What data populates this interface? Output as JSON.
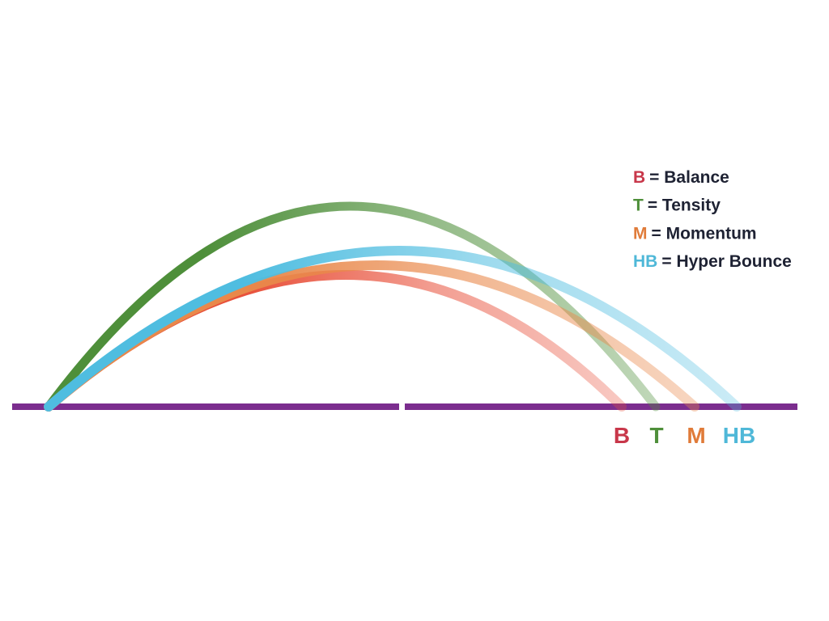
{
  "legend": [
    {
      "abbr": "B",
      "text": "= Balance",
      "color": "#c8374a"
    },
    {
      "abbr": "T",
      "text": "= Tensity",
      "color": "#4e8f3a"
    },
    {
      "abbr": "M",
      "text": "= Momentum",
      "color": "#e07b39"
    },
    {
      "abbr": "HB",
      "text": "= Hyper Bounce",
      "color": "#4fb8d8"
    }
  ],
  "end_labels": [
    {
      "text": "B",
      "color": "#c8374a"
    },
    {
      "text": "T",
      "color": "#4e8f3a"
    },
    {
      "text": "M",
      "color": "#e07b39"
    },
    {
      "text": "HB",
      "color": "#4fb8d8"
    }
  ]
}
